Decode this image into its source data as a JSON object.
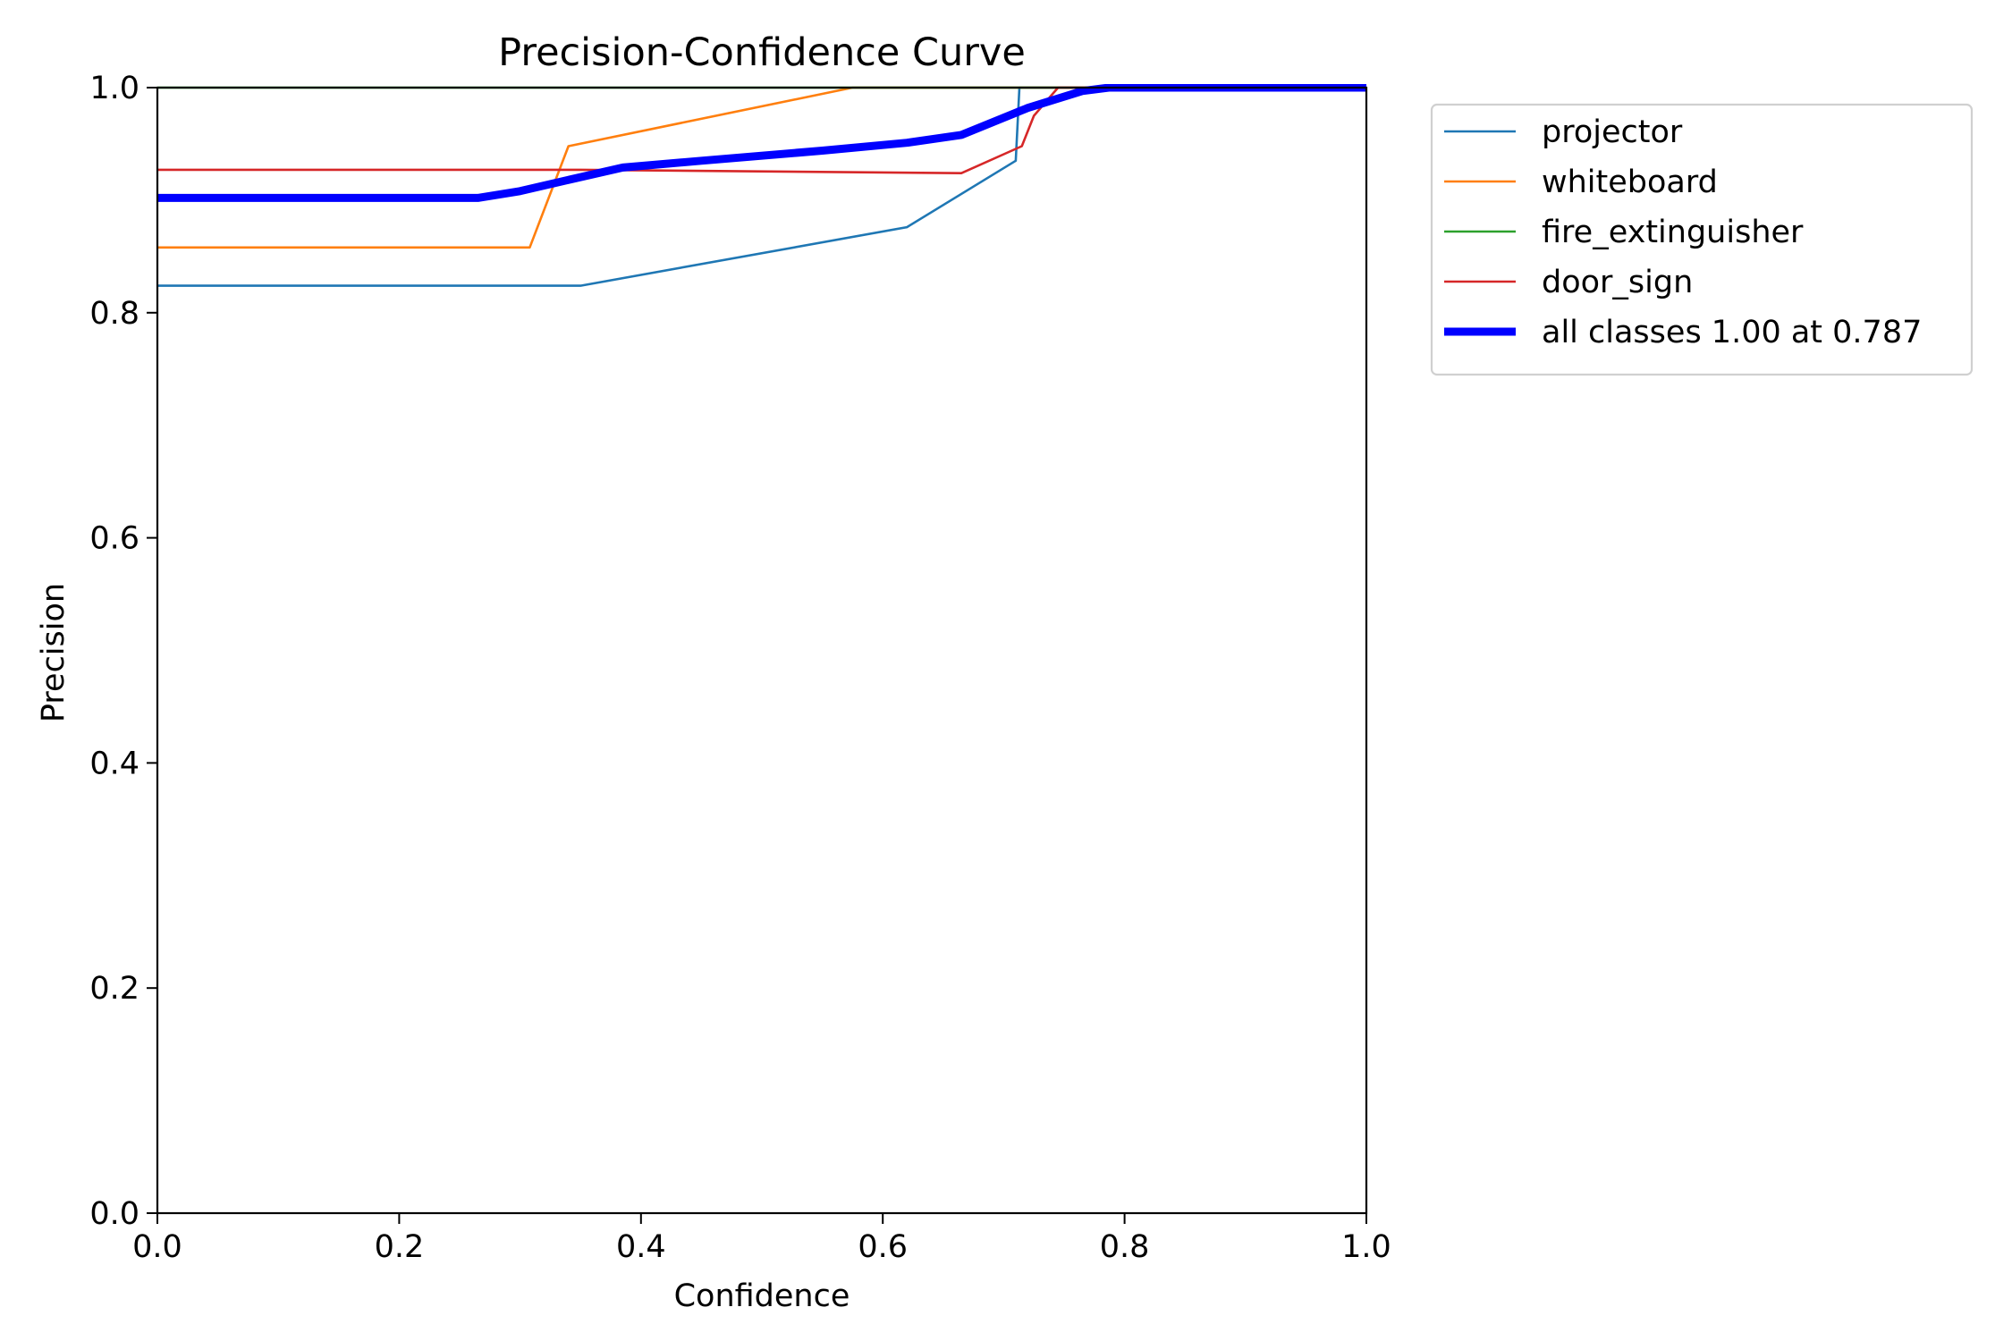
{
  "chart_data": {
    "type": "line",
    "title": "Precision-Confidence Curve",
    "xlabel": "Confidence",
    "ylabel": "Precision",
    "xlim": [
      0,
      1
    ],
    "ylim": [
      0,
      1
    ],
    "xticks": [
      "0.0",
      "0.2",
      "0.4",
      "0.6",
      "0.8",
      "1.0"
    ],
    "yticks": [
      "0.0",
      "0.2",
      "0.4",
      "0.6",
      "0.8",
      "1.0"
    ],
    "grid": false,
    "legend_position": "outside upper right",
    "series": [
      {
        "name": "projector",
        "color": "#1f77b4",
        "width": "thin",
        "x": [
          0,
          0.35,
          0.62,
          0.71,
          0.713,
          1.0
        ],
        "y": [
          0.824,
          0.824,
          0.876,
          0.935,
          1.0,
          1.0
        ]
      },
      {
        "name": "whiteboard",
        "color": "#ff7f0e",
        "width": "thin",
        "x": [
          0,
          0.308,
          0.34,
          0.575,
          0.6,
          1.0
        ],
        "y": [
          0.858,
          0.858,
          0.948,
          1.0,
          1.0,
          1.0
        ]
      },
      {
        "name": "fire_extinguisher",
        "color": "#2ca02c",
        "width": "thin",
        "x": [
          0,
          1.0
        ],
        "y": [
          1.0,
          1.0
        ]
      },
      {
        "name": "door_sign",
        "color": "#d62728",
        "width": "thin",
        "x": [
          0,
          0.35,
          0.665,
          0.715,
          0.725,
          0.745,
          1.0
        ],
        "y": [
          0.927,
          0.927,
          0.924,
          0.948,
          0.975,
          1.0,
          1.0
        ]
      },
      {
        "name": "all classes 1.00 at 0.787",
        "color": "#0000ff",
        "width": "thick",
        "x": [
          0,
          0.265,
          0.3,
          0.34,
          0.385,
          0.45,
          0.55,
          0.62,
          0.665,
          0.72,
          0.765,
          0.787,
          1.0
        ],
        "y": [
          0.902,
          0.902,
          0.908,
          0.918,
          0.929,
          0.935,
          0.944,
          0.951,
          0.958,
          0.982,
          0.997,
          1.0,
          1.0
        ]
      }
    ]
  }
}
